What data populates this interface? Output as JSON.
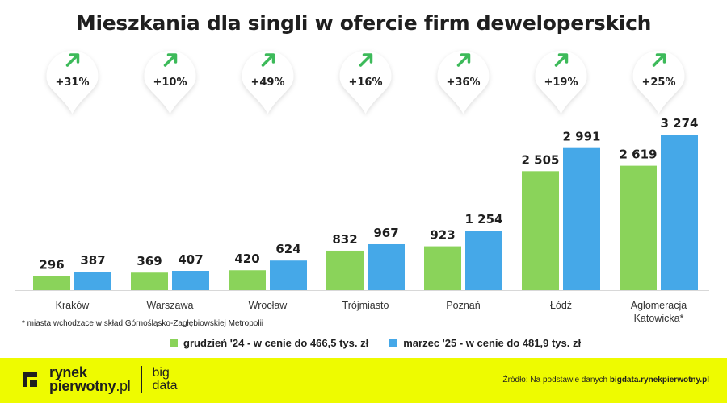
{
  "chart_data": {
    "type": "bar",
    "title": "Mieszkania dla singli w ofercie firm deweloperskich",
    "categories": [
      "Kraków",
      "Warszawa",
      "Wrocław",
      "Trójmiasto",
      "Poznań",
      "Łódź",
      "Aglomeracja Katowicka*"
    ],
    "series": [
      {
        "name": "grudzień '24 - w cenie do 466,5 tys. zł",
        "color": "#8ad35a",
        "values": [
          296,
          369,
          420,
          832,
          923,
          2505,
          2619
        ],
        "labels": [
          "296",
          "369",
          "420",
          "832",
          "923",
          "2 505",
          "2 619"
        ]
      },
      {
        "name": "marzec '25 - w cenie do 481,9 tys. zł",
        "color": "#45a8e8",
        "values": [
          387,
          407,
          624,
          967,
          1254,
          2991,
          3274
        ],
        "labels": [
          "387",
          "407",
          "624",
          "967",
          "1 254",
          "2 991",
          "3 274"
        ]
      }
    ],
    "changes": [
      "+31%",
      "+10%",
      "+49%",
      "+16%",
      "+36%",
      "+19%",
      "+25%"
    ],
    "change_icon": "arrow-up-right-icon",
    "change_color": "#3dba5a",
    "ylim": [
      0,
      3274
    ],
    "grid": false,
    "legend_position": "bottom",
    "xlabel": "",
    "ylabel": ""
  },
  "footnote": "* miasta wchodzace w skład Górnośląsko-Zagłębiowskiej Metropolii",
  "footer": {
    "logo_line1": "rynek",
    "logo_line2": "pierwotny",
    "logo_suffix": ".pl",
    "bigdata_line1": "big",
    "bigdata_line2": "data",
    "source_prefix": "Źródło: Na podstawie danych",
    "source_site": "bigdata.rynekpierwotny.pl",
    "background": "#eefb00"
  }
}
